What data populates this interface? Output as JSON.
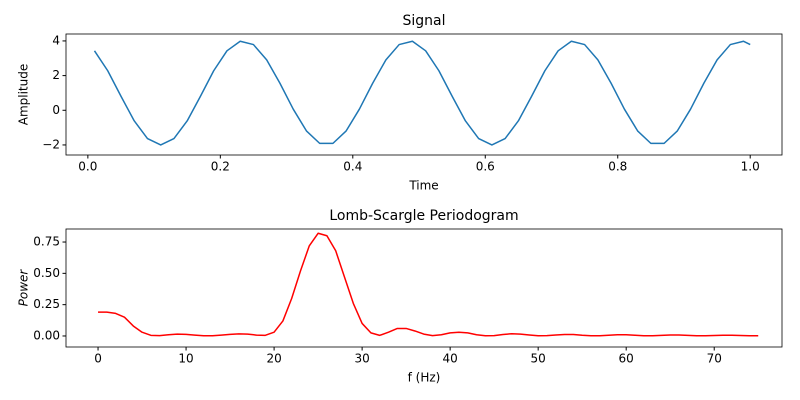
{
  "chart_data": [
    {
      "type": "line",
      "title": "Signal",
      "x_label": "Time",
      "y_label": "Amplitude",
      "x": [
        0.01,
        0.03,
        0.05,
        0.07,
        0.09,
        0.11,
        0.13,
        0.15,
        0.17,
        0.19,
        0.21,
        0.23,
        0.25,
        0.27,
        0.29,
        0.31,
        0.33,
        0.35,
        0.37,
        0.39,
        0.41,
        0.43,
        0.45,
        0.47,
        0.49,
        0.51,
        0.53,
        0.55,
        0.57,
        0.59,
        0.61,
        0.63,
        0.65,
        0.67,
        0.69,
        0.71,
        0.73,
        0.75,
        0.77,
        0.79,
        0.81,
        0.83,
        0.85,
        0.87,
        0.89,
        0.91,
        0.93,
        0.95,
        0.97,
        0.99,
        1.0
      ],
      "series": [
        {
          "color": "#1f77b4",
          "values": [
            3.43,
            2.28,
            0.81,
            -0.61,
            -1.63,
            -2.0,
            -1.63,
            -0.61,
            0.81,
            2.28,
            3.43,
            3.98,
            3.79,
            2.91,
            1.56,
            0.07,
            -1.19,
            -1.91,
            -1.91,
            -1.19,
            0.07,
            1.56,
            2.91,
            3.79,
            3.98,
            3.43,
            2.28,
            0.81,
            -0.61,
            -1.63,
            -2.0,
            -1.63,
            -0.61,
            0.81,
            2.28,
            3.43,
            3.98,
            3.79,
            2.91,
            1.56,
            0.07,
            -1.19,
            -1.91,
            -1.91,
            -1.19,
            0.07,
            1.56,
            2.91,
            3.79,
            3.98,
            3.79
          ]
        }
      ],
      "xlim": [
        -0.033,
        1.048
      ],
      "xticks": [
        {
          "value": 0.0,
          "label": "0.0"
        },
        {
          "value": 0.2,
          "label": "0.2"
        },
        {
          "value": 0.4,
          "label": "0.4"
        },
        {
          "value": 0.6,
          "label": "0.6"
        },
        {
          "value": 0.8,
          "label": "0.8"
        },
        {
          "value": 1.0,
          "label": "1.0"
        }
      ],
      "ylim": [
        -2.58,
        4.4
      ],
      "yticks": [
        {
          "value": -2,
          "label": "−2"
        },
        0,
        2,
        4
      ]
    },
    {
      "type": "line",
      "title": "Lomb-Scargle Periodogram",
      "x_label": "f (Hz)",
      "y_label": "Power",
      "x": [
        0,
        1,
        2,
        3,
        4,
        5,
        6,
        7,
        8,
        9,
        10,
        11,
        12,
        13,
        14,
        15,
        16,
        17,
        18,
        19,
        20,
        21,
        22,
        23,
        24,
        25,
        26,
        27,
        28,
        29,
        30,
        31,
        32,
        33,
        34,
        35,
        36,
        37,
        38,
        39,
        40,
        41,
        42,
        43,
        44,
        45,
        46,
        47,
        48,
        49,
        50,
        51,
        52,
        53,
        54,
        55,
        56,
        57,
        58,
        59,
        60,
        61,
        62,
        63,
        64,
        65,
        66,
        67,
        68,
        69,
        70,
        71,
        72,
        73,
        74,
        75
      ],
      "series": [
        {
          "color": "#ff0000",
          "values": [
            0.19,
            0.19,
            0.18,
            0.15,
            0.08,
            0.03,
            0.005,
            0.003,
            0.01,
            0.015,
            0.013,
            0.007,
            0.002,
            0.002,
            0.007,
            0.013,
            0.017,
            0.015,
            0.007,
            0.005,
            0.03,
            0.12,
            0.3,
            0.52,
            0.72,
            0.82,
            0.8,
            0.68,
            0.47,
            0.26,
            0.1,
            0.025,
            0.005,
            0.03,
            0.06,
            0.06,
            0.04,
            0.015,
            0.003,
            0.01,
            0.025,
            0.03,
            0.025,
            0.01,
            0.002,
            0.003,
            0.012,
            0.018,
            0.015,
            0.008,
            0.002,
            0.003,
            0.008,
            0.012,
            0.012,
            0.006,
            0.002,
            0.002,
            0.006,
            0.01,
            0.01,
            0.006,
            0.002,
            0.002,
            0.005,
            0.008,
            0.008,
            0.005,
            0.002,
            0.002,
            0.004,
            0.006,
            0.006,
            0.004,
            0.002,
            0.002
          ]
        }
      ],
      "xlim": [
        -3.64,
        77.7
      ],
      "xticks": [
        0,
        10,
        20,
        30,
        40,
        50,
        60,
        70
      ],
      "ylim": [
        -0.088,
        0.854
      ],
      "yticks": [
        {
          "value": 0.0,
          "label": "0.00"
        },
        {
          "value": 0.25,
          "label": "0.25"
        },
        {
          "value": 0.5,
          "label": "0.50"
        },
        {
          "value": 0.75,
          "label": "0.75"
        }
      ]
    }
  ]
}
